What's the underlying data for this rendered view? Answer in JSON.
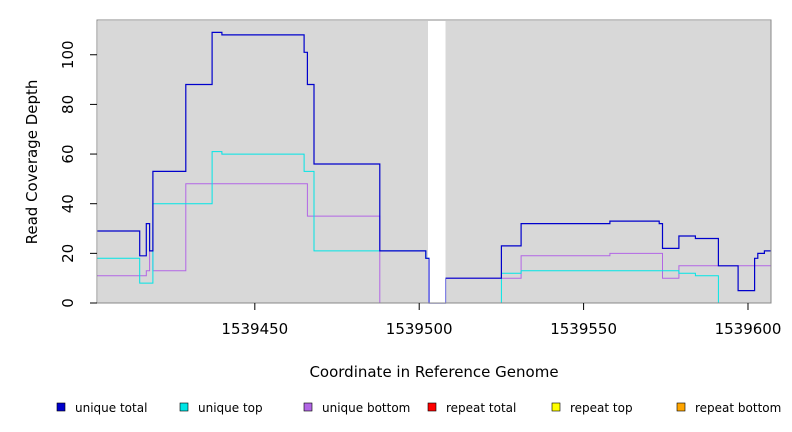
{
  "chart_data": {
    "type": "line",
    "style": "step",
    "xlabel": "Coordinate in Reference Genome",
    "ylabel": "Read Coverage Depth",
    "xlim": [
      1539402,
      1539607
    ],
    "ylim": [
      0,
      114
    ],
    "x_ticks": [
      1539450,
      1539500,
      1539550,
      1539600
    ],
    "x_tick_labels": [
      "1539450",
      "1539500",
      "1539550",
      "1539600"
    ],
    "y_ticks": [
      0,
      20,
      40,
      60,
      80,
      100
    ],
    "y_tick_labels": [
      "0",
      "20",
      "40",
      "60",
      "80",
      "100"
    ],
    "plot_background": "#d8d8d8",
    "gap_region": [
      1539503,
      1539508
    ],
    "legend_position": "bottom",
    "series": [
      {
        "name": "unique total",
        "color": "#0000cc",
        "x": [
          1539402,
          1539415,
          1539417,
          1539418,
          1539419,
          1539429,
          1539437,
          1539440,
          1539465,
          1539466,
          1539468,
          1539488,
          1539502,
          1539503,
          1539508,
          1539525,
          1539531,
          1539558,
          1539573,
          1539574,
          1539579,
          1539584,
          1539591,
          1539597,
          1539602,
          1539603,
          1539605,
          1539607
        ],
        "y": [
          29,
          19,
          32,
          21,
          53,
          88,
          109,
          108,
          101,
          88,
          56,
          21,
          18,
          0,
          10,
          23,
          32,
          33,
          32,
          22,
          27,
          26,
          15,
          5,
          18,
          20,
          21,
          21
        ]
      },
      {
        "name": "unique top",
        "color": "#00e5e5",
        "x": [
          1539402,
          1539415,
          1539419,
          1539437,
          1539440,
          1539465,
          1539468,
          1539488,
          1539502,
          1539503,
          1539508,
          1539525,
          1539531,
          1539573,
          1539579,
          1539584,
          1539591,
          1539607
        ],
        "y": [
          18,
          8,
          40,
          61,
          60,
          53,
          21,
          21,
          18,
          0,
          0,
          12,
          13,
          13,
          12,
          11,
          0,
          0
        ]
      },
      {
        "name": "unique bottom",
        "color": "#b266e5",
        "x": [
          1539402,
          1539417,
          1539418,
          1539419,
          1539429,
          1539466,
          1539488,
          1539502,
          1539503,
          1539508,
          1539525,
          1539531,
          1539558,
          1539574,
          1539579,
          1539591,
          1539607
        ],
        "y": [
          11,
          13,
          21,
          13,
          48,
          35,
          0,
          0,
          0,
          10,
          10,
          19,
          20,
          10,
          15,
          15,
          0
        ]
      },
      {
        "name": "repeat total",
        "color": "#ff0000",
        "x": [
          1539402,
          1539503,
          1539508,
          1539607
        ],
        "y": [
          0,
          0,
          0,
          0
        ]
      },
      {
        "name": "repeat top",
        "color": "#ffff00",
        "x": [
          1539402,
          1539503,
          1539508,
          1539607
        ],
        "y": [
          0,
          0,
          0,
          0
        ]
      },
      {
        "name": "repeat bottom",
        "color": "#ffa500",
        "x": [
          1539402,
          1539503,
          1539508,
          1539607
        ],
        "y": [
          0,
          0,
          0,
          0
        ]
      }
    ]
  }
}
